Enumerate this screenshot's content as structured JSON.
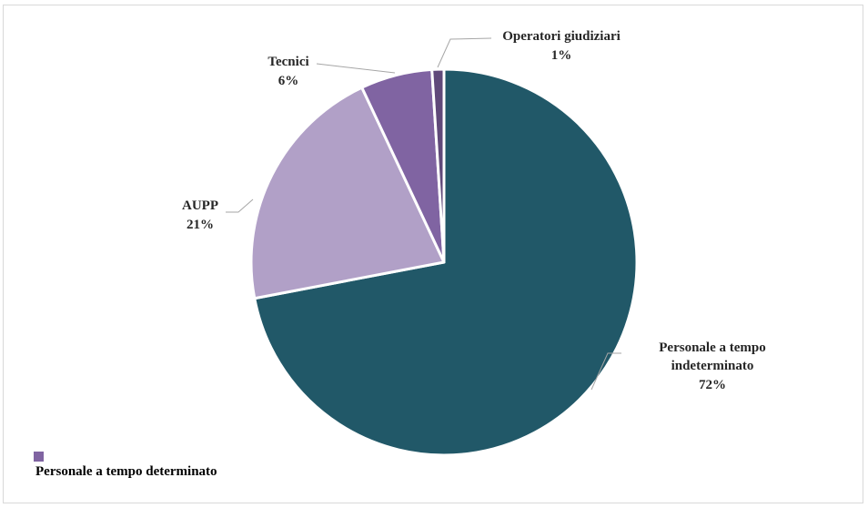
{
  "chart_data": {
    "type": "pie",
    "title": "",
    "slices": [
      {
        "label_lines": [
          "Personale a tempo",
          "indeterminato"
        ],
        "pct_label": "72%",
        "value": 72,
        "color": "#215868"
      },
      {
        "label_lines": [
          "AUPP"
        ],
        "pct_label": "21%",
        "value": 21,
        "color": "#b1a0c7"
      },
      {
        "label_lines": [
          "Tecnici"
        ],
        "pct_label": "6%",
        "value": 6,
        "color": "#8064a2"
      },
      {
        "label_lines": [
          "Operatori giudiziari"
        ],
        "pct_label": "1%",
        "value": 1,
        "color": "#60497a"
      }
    ],
    "legend": [
      {
        "label": "Personale a tempo determinato",
        "color": "#8064a2"
      }
    ],
    "legend_position": "bottom-left"
  }
}
